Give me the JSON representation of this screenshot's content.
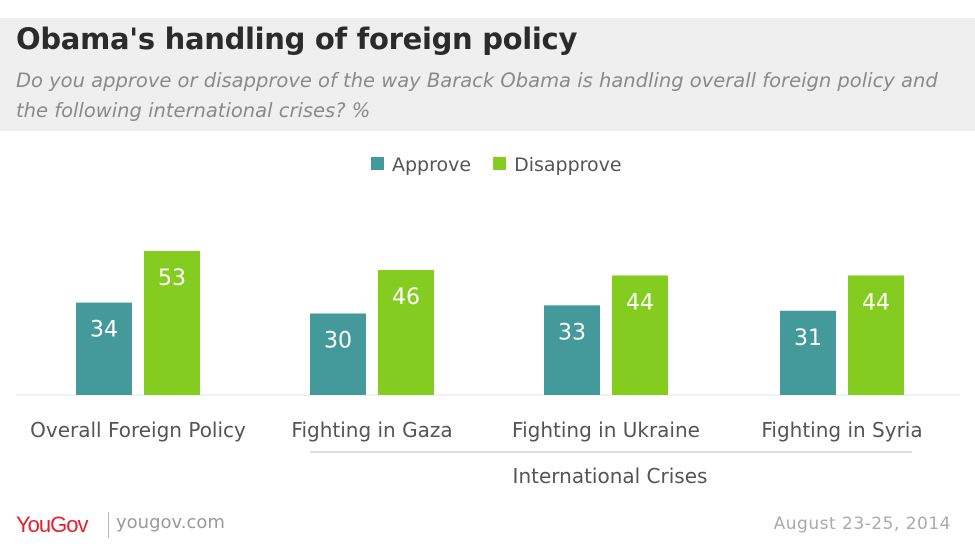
{
  "header": {
    "title": "Obama's handling of foreign policy",
    "subtitle": "Do you approve or disapprove of the way Barack Obama is handling overall foreign policy and the following international crises? %"
  },
  "chart_data": {
    "type": "bar",
    "title": "Obama's handling of foreign policy",
    "categories": [
      "Overall Foreign Policy",
      "Fighting in Gaza",
      "Fighting in Ukraine",
      "Fighting in Syria"
    ],
    "series": [
      {
        "name": "Approve",
        "values": [
          34,
          30,
          33,
          31
        ],
        "color": "#44999b"
      },
      {
        "name": "Disapprove",
        "values": [
          53,
          46,
          44,
          44
        ],
        "color": "#84cc1f"
      }
    ],
    "group_label": "International Crises",
    "xlabel": "",
    "ylabel": "",
    "ylim": [
      0,
      53
    ],
    "grid": false,
    "legend_position": "top-center"
  },
  "footer": {
    "logo": "YouGov",
    "url": "yougov.com",
    "date": "August 23-25, 2014"
  }
}
